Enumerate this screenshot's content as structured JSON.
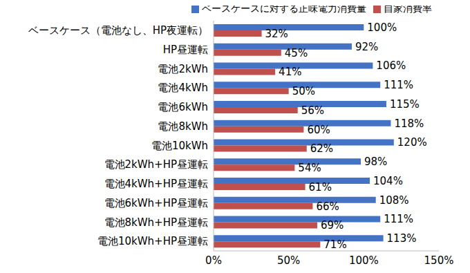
{
  "chart_data": {
    "type": "bar",
    "orientation": "horizontal",
    "categories": [
      "ベースケース（電池なし、HP夜運転）",
      "HP昼運転",
      "電池2kWh",
      "電池4kWh",
      "電池6kWh",
      "電池8kWh",
      "電池10kWh",
      "電池2kWh+HP昼運転",
      "電池4kWh+HP昼運転",
      "電池6kWh+HP昼運転",
      "電池8kWh+HP昼運転",
      "電池10kWh+HP昼運転"
    ],
    "series": [
      {
        "name": "ベースケースに対する正味電力消費量",
        "color": "#4472C4",
        "values": [
          100,
          92,
          106,
          111,
          115,
          118,
          120,
          98,
          104,
          108,
          111,
          113
        ],
        "value_labels": [
          "100%",
          "92%",
          "106%",
          "111%",
          "115%",
          "118%",
          "120%",
          "98%",
          "104%",
          "108%",
          "111%",
          "113%"
        ]
      },
      {
        "name": "自家消費率",
        "color": "#C0504D",
        "values": [
          32,
          45,
          41,
          50,
          56,
          60,
          62,
          54,
          61,
          66,
          69,
          71
        ],
        "value_labels": [
          "32%",
          "45%",
          "41%",
          "50%",
          "56%",
          "60%",
          "62%",
          "54%",
          "61%",
          "66%",
          "69%",
          "71%"
        ]
      }
    ],
    "xlim": [
      0,
      150
    ],
    "xticks": [
      {
        "value": 0,
        "label": "0%"
      },
      {
        "value": 50,
        "label": "50%"
      },
      {
        "value": 100,
        "label": "100%"
      },
      {
        "value": 150,
        "label": "150%"
      }
    ],
    "grid": false,
    "legend": "top",
    "data_labels": true
  }
}
